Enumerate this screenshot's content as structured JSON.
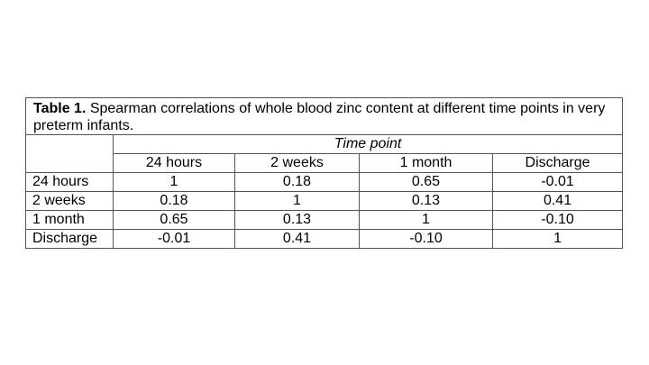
{
  "table": {
    "caption_label": "Table 1.",
    "caption_text": " Spearman correlations of whole blood zinc content at different time points in very preterm infants.",
    "group_header": "Time point",
    "columns": [
      "24 hours",
      "2 weeks",
      "1 month",
      "Discharge"
    ],
    "rows": [
      {
        "label": "24 hours",
        "values": [
          "1",
          "0.18",
          "0.65",
          "-0.01"
        ]
      },
      {
        "label": "2 weeks",
        "values": [
          "0.18",
          "1",
          "0.13",
          "0.41"
        ]
      },
      {
        "label": "1 month",
        "values": [
          "0.65",
          "0.13",
          "1",
          "-0.10"
        ]
      },
      {
        "label": "Discharge",
        "values": [
          "-0.01",
          "0.41",
          "-0.10",
          "1"
        ]
      }
    ]
  }
}
